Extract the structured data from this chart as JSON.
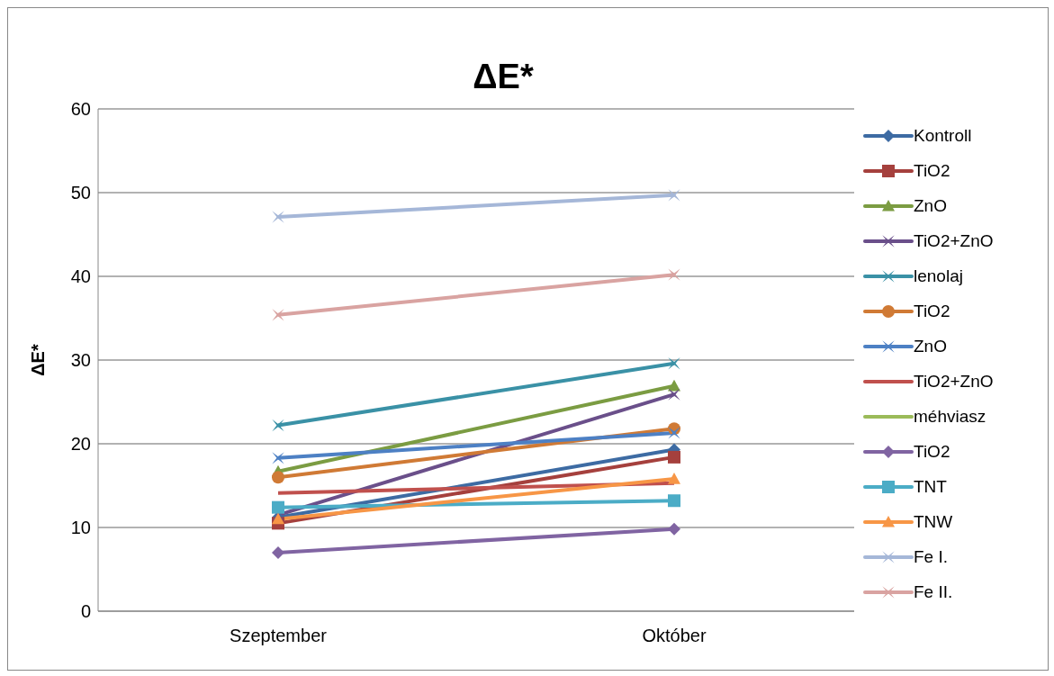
{
  "chart_data": {
    "type": "line",
    "title": "ΔE*",
    "ylabel": "ΔE*",
    "categories": [
      "Szeptember",
      "Október"
    ],
    "ylim": [
      0,
      60
    ],
    "yticks": [
      0,
      10,
      20,
      30,
      40,
      50,
      60
    ],
    "grid": "y",
    "legend": "right",
    "series": [
      {
        "name": "Kontroll",
        "color": "#3d6ba3",
        "marker": "diamond",
        "values": [
          11.2,
          19.3
        ]
      },
      {
        "name": "TiO2",
        "color": "#a5403d",
        "marker": "square",
        "values": [
          10.5,
          18.4
        ]
      },
      {
        "name": "ZnO",
        "color": "#7b9c42",
        "marker": "triangle",
        "values": [
          16.7,
          26.9
        ]
      },
      {
        "name": "TiO2+ZnO",
        "color": "#6a4f8a",
        "marker": "cross",
        "values": [
          11.5,
          25.9
        ]
      },
      {
        "name": "lenolaj",
        "color": "#3a91a6",
        "marker": "cross",
        "values": [
          22.2,
          29.6
        ]
      },
      {
        "name": "TiO2",
        "color": "#d07a35",
        "marker": "circle",
        "values": [
          16.0,
          21.8
        ]
      },
      {
        "name": "ZnO",
        "color": "#4d80c4",
        "marker": "cross",
        "values": [
          18.3,
          21.3
        ]
      },
      {
        "name": "TiO2+ZnO",
        "color": "#c0504d",
        "marker": "none",
        "values": [
          14.1,
          15.3
        ]
      },
      {
        "name": "méhviasz",
        "color": "#9bbb59",
        "marker": "none",
        "values": [
          null,
          null
        ]
      },
      {
        "name": "TiO2",
        "color": "#8064a2",
        "marker": "diamond",
        "values": [
          7.0,
          9.8
        ]
      },
      {
        "name": "TNT",
        "color": "#4bacc6",
        "marker": "square",
        "values": [
          12.4,
          13.2
        ]
      },
      {
        "name": "TNW",
        "color": "#f79646",
        "marker": "triangle",
        "values": [
          11.0,
          15.8
        ]
      },
      {
        "name": "Fe I.",
        "color": "#a5b7d8",
        "marker": "cross",
        "values": [
          47.1,
          49.7
        ]
      },
      {
        "name": "Fe II.",
        "color": "#d9a3a1",
        "marker": "cross",
        "values": [
          35.4,
          40.2
        ]
      }
    ]
  }
}
